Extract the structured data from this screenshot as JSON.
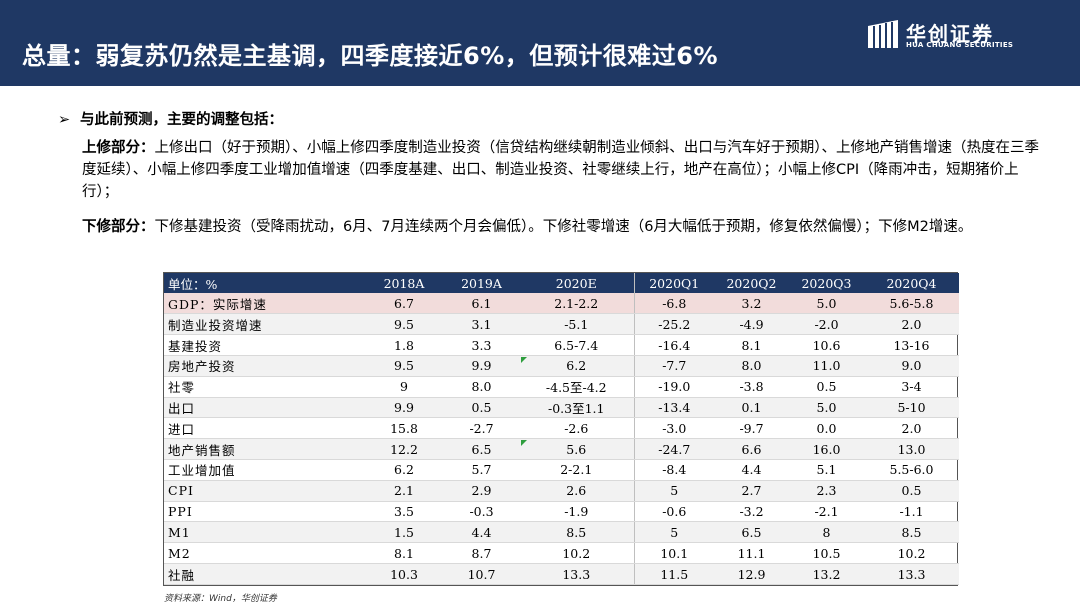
{
  "header": {
    "title": "总量：弱复苏仍然是主基调，四季度接近6%，但预计很难过6%",
    "logo_cn": "华创证券",
    "logo_en": "HUA CHUANG SECURITIES",
    "bg_color": "#1f3864"
  },
  "bullet": {
    "icon": "arrow-right-icon",
    "text": "与此前预测，主要的调整包括："
  },
  "upward": {
    "label": "上修部分：",
    "text": "上修出口（好于预期）、小幅上修四季度制造业投资（信贷结构继续朝制造业倾斜、出口与汽车好于预期）、上修地产销售增速（热度在三季度延续）、小幅上修四季度工业增加值增速（四季度基建、出口、制造业投资、社零继续上行，地产在高位）；小幅上修CPI（降雨冲击，短期猪价上行）；"
  },
  "downward": {
    "label": "下修部分：",
    "text": "下修基建投资（受降雨扰动，6月、7月连续两个月会偏低）。下修社零增速（6月大幅低于预期，修复依然偏慢）；下修M2增速。"
  },
  "table": {
    "headers": [
      "单位：%",
      "2018A",
      "2019A",
      "2020E",
      "2020Q1",
      "2020Q2",
      "2020Q3",
      "2020Q4"
    ],
    "rows": [
      [
        "GDP：实际增速",
        "6.7",
        "6.1",
        "2.1-2.2",
        "-6.8",
        "3.2",
        "5.0",
        "5.6-5.8"
      ],
      [
        "制造业投资增速",
        "9.5",
        "3.1",
        "-5.1",
        "-25.2",
        "-4.9",
        "-2.0",
        "2.0"
      ],
      [
        "基建投资",
        "1.8",
        "3.3",
        "6.5-7.4",
        "-16.4",
        "8.1",
        "10.6",
        "13-16"
      ],
      [
        "房地产投资",
        "9.5",
        "9.9",
        "6.2",
        "-7.7",
        "8.0",
        "11.0",
        "9.0"
      ],
      [
        "社零",
        "9",
        "8.0",
        "-4.5至-4.2",
        "-19.0",
        "-3.8",
        "0.5",
        "3-4"
      ],
      [
        "出口",
        "9.9",
        "0.5",
        "-0.3至1.1",
        "-13.4",
        "0.1",
        "5.0",
        "5-10"
      ],
      [
        "进口",
        "15.8",
        "-2.7",
        "-2.6",
        "-3.0",
        "-9.7",
        "0.0",
        "2.0"
      ],
      [
        "地产销售额",
        "12.2",
        "6.5",
        "5.6",
        "-24.7",
        "6.6",
        "16.0",
        "13.0"
      ],
      [
        "工业增加值",
        "6.2",
        "5.7",
        "2-2.1",
        "-8.4",
        "4.4",
        "5.1",
        "5.5-6.0"
      ],
      [
        "CPI",
        "2.1",
        "2.9",
        "2.6",
        "5",
        "2.7",
        "2.3",
        "0.5"
      ],
      [
        "PPI",
        "3.5",
        "-0.3",
        "-1.9",
        "-0.6",
        "-3.2",
        "-2.1",
        "-1.1"
      ],
      [
        "M1",
        "1.5",
        "4.4",
        "8.5",
        "5",
        "6.5",
        "8",
        "8.5"
      ],
      [
        "M2",
        "8.1",
        "8.7",
        "10.2",
        "10.1",
        "11.1",
        "10.5",
        "10.2"
      ],
      [
        "社融",
        "10.3",
        "10.7",
        "13.3",
        "11.5",
        "12.9",
        "13.2",
        "13.3"
      ]
    ],
    "flagged_rows": [
      3,
      7
    ]
  },
  "source": "资料来源：Wind，华创证券"
}
